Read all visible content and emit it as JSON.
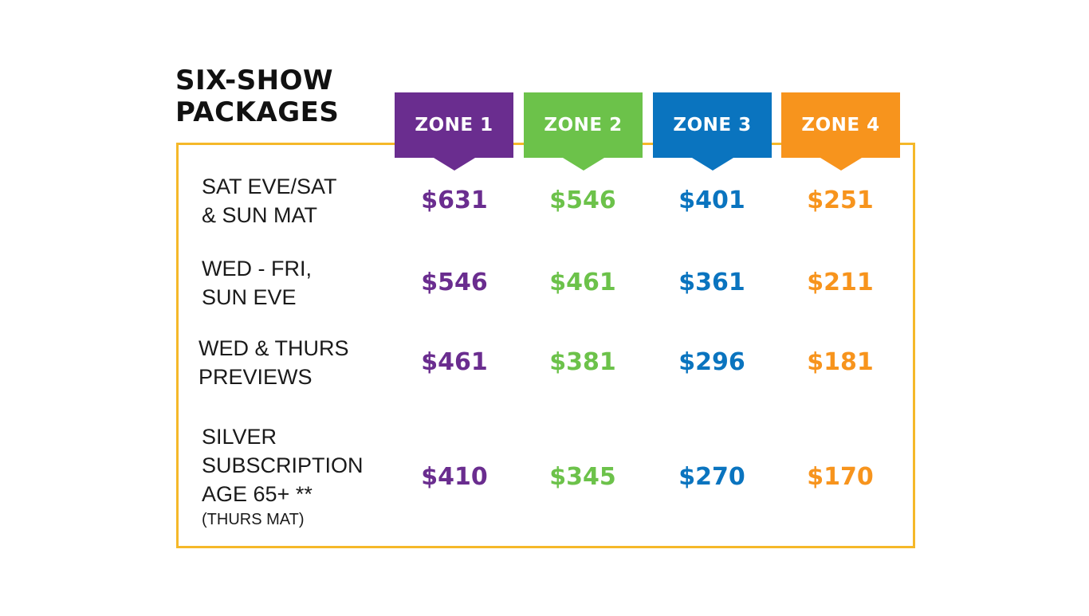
{
  "title": {
    "line1": "SIX-SHOW",
    "line2": "PACKAGES"
  },
  "zones": [
    {
      "label": "ZONE 1",
      "color": "#6a2d8f"
    },
    {
      "label": "ZONE 2",
      "color": "#6cc24a"
    },
    {
      "label": "ZONE 3",
      "color": "#0a74bf"
    },
    {
      "label": "ZONE 4",
      "color": "#f7941d"
    }
  ],
  "frame_color": "#f5b829",
  "rows": [
    {
      "label_lines": [
        "SAT EVE/SAT",
        "& SUN MAT"
      ],
      "note": "",
      "prices": [
        "$631",
        "$546",
        "$401",
        "$251"
      ]
    },
    {
      "label_lines": [
        "WED - FRI,",
        "SUN EVE"
      ],
      "note": "",
      "prices": [
        "$546",
        "$461",
        "$361",
        "$211"
      ]
    },
    {
      "label_lines": [
        "WED & THURS",
        "PREVIEWS"
      ],
      "note": "",
      "prices": [
        "$461",
        "$381",
        "$296",
        "$181"
      ]
    },
    {
      "label_lines": [
        "SILVER",
        "SUBSCRIPTION",
        "AGE 65+ **"
      ],
      "note": "(THURS MAT)",
      "prices": [
        "$410",
        "$345",
        "$270",
        "$170"
      ]
    }
  ]
}
